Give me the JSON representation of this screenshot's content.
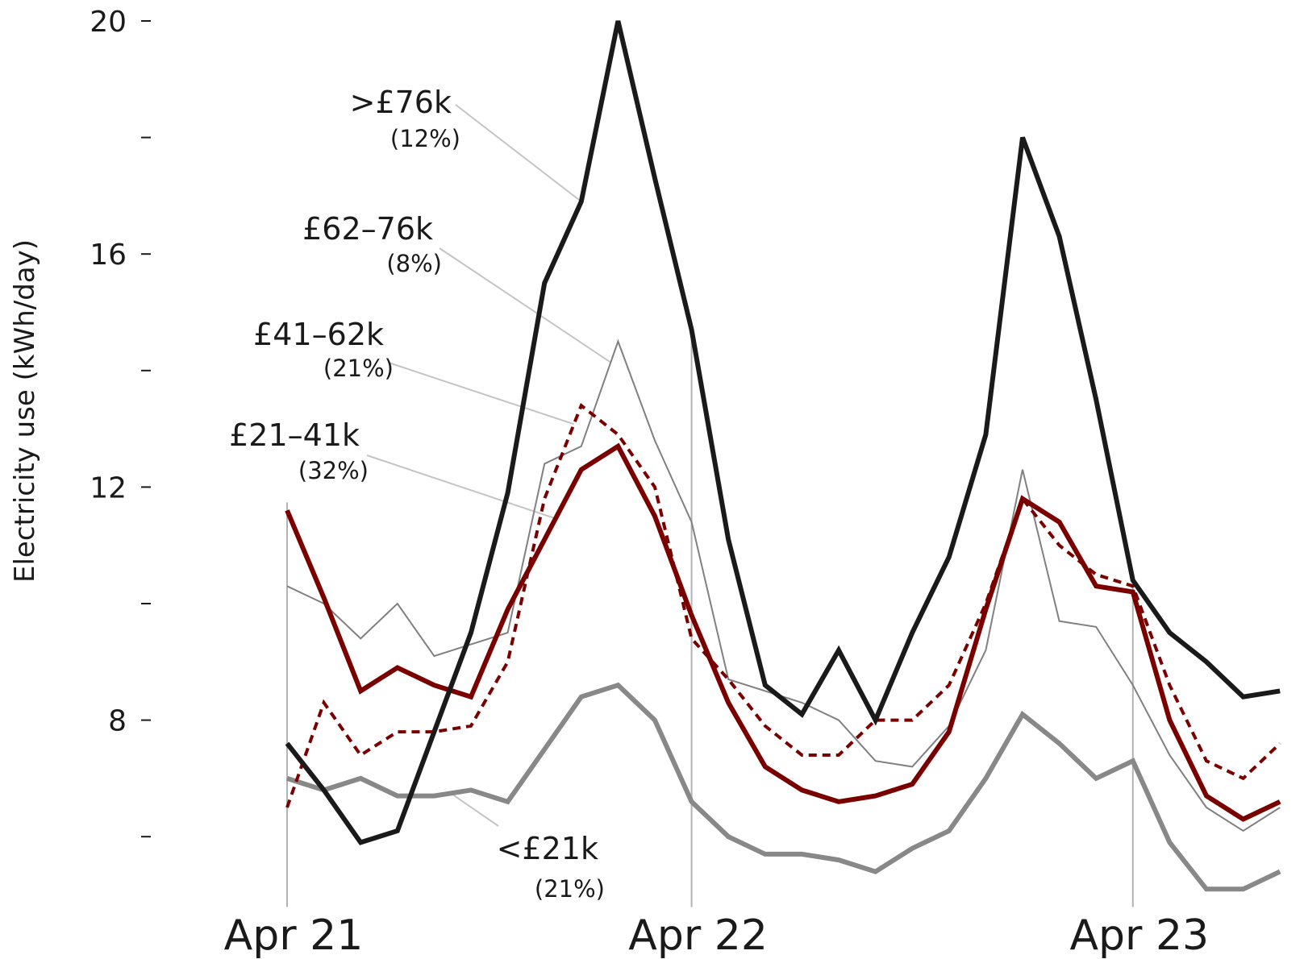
{
  "chart_data": {
    "type": "line",
    "title": "",
    "xlabel": "",
    "ylabel": "Electricity use (kWh/day)",
    "ylim": [
      5.0,
      20.4
    ],
    "y_ticks": [
      6,
      8,
      10,
      12,
      14,
      16,
      18,
      20
    ],
    "y_tick_labels": [
      "",
      "8",
      "",
      "12",
      "",
      "16",
      "",
      "20"
    ],
    "x_ticks": [
      {
        "label": "Apr 21",
        "index": 0
      },
      {
        "label": "Apr 22",
        "index": 11
      },
      {
        "label": "Apr 23",
        "index": 23
      }
    ],
    "grid": false,
    "series": [
      {
        "name": ">£76k",
        "share": "(12%)",
        "color": "#1a1a1a",
        "width": 6,
        "dash": "",
        "values": [
          7.6,
          6.8,
          5.9,
          6.1,
          7.8,
          9.5,
          11.9,
          15.5,
          16.9,
          20.0,
          17.3,
          14.7,
          11.1,
          8.6,
          8.1,
          9.2,
          8.0,
          9.5,
          10.8,
          12.9,
          18.0,
          16.3,
          13.5,
          10.4,
          9.5,
          9.0,
          8.4,
          8.5
        ]
      },
      {
        "name": "£62–76k",
        "share": "(8%)",
        "color": "#808080",
        "width": 2,
        "dash": "",
        "values": [
          10.3,
          10.0,
          9.4,
          10.0,
          9.1,
          9.3,
          9.5,
          12.4,
          12.7,
          14.5,
          12.8,
          11.4,
          8.7,
          8.5,
          8.3,
          8.0,
          7.3,
          7.2,
          7.9,
          9.2,
          12.3,
          9.7,
          9.6,
          8.6,
          7.4,
          6.5,
          6.1,
          6.5
        ]
      },
      {
        "name": "£41–62k",
        "share": "(21%)",
        "color": "#7a0000",
        "width": 4,
        "dash": "10,7",
        "values": [
          6.5,
          8.3,
          7.4,
          7.8,
          7.8,
          7.9,
          9.0,
          11.8,
          13.4,
          12.9,
          12.0,
          9.4,
          8.7,
          7.9,
          7.4,
          7.4,
          8.0,
          8.0,
          8.6,
          10.0,
          11.8,
          11.0,
          10.5,
          10.3,
          8.6,
          7.3,
          7.0,
          7.6
        ]
      },
      {
        "name": "£21–41k",
        "share": "(32%)",
        "color": "#7a0000",
        "width": 6,
        "dash": "",
        "values": [
          11.6,
          10.1,
          8.5,
          8.9,
          8.6,
          8.4,
          9.9,
          11.1,
          12.3,
          12.7,
          11.5,
          9.8,
          8.3,
          7.2,
          6.8,
          6.6,
          6.7,
          6.9,
          7.8,
          9.9,
          11.8,
          11.4,
          10.3,
          10.2,
          8.0,
          6.7,
          6.3,
          6.6
        ]
      },
      {
        "name": "<£21k",
        "share": "(21%)",
        "color": "#888888",
        "width": 6,
        "dash": "",
        "values": [
          7.0,
          6.8,
          7.0,
          6.7,
          6.7,
          6.8,
          6.6,
          7.5,
          8.4,
          8.6,
          8.0,
          6.6,
          6.0,
          5.7,
          5.7,
          5.6,
          5.4,
          5.8,
          6.1,
          7.0,
          8.1,
          7.6,
          7.0,
          7.3,
          5.9,
          5.1,
          5.1,
          5.4
        ]
      }
    ]
  }
}
